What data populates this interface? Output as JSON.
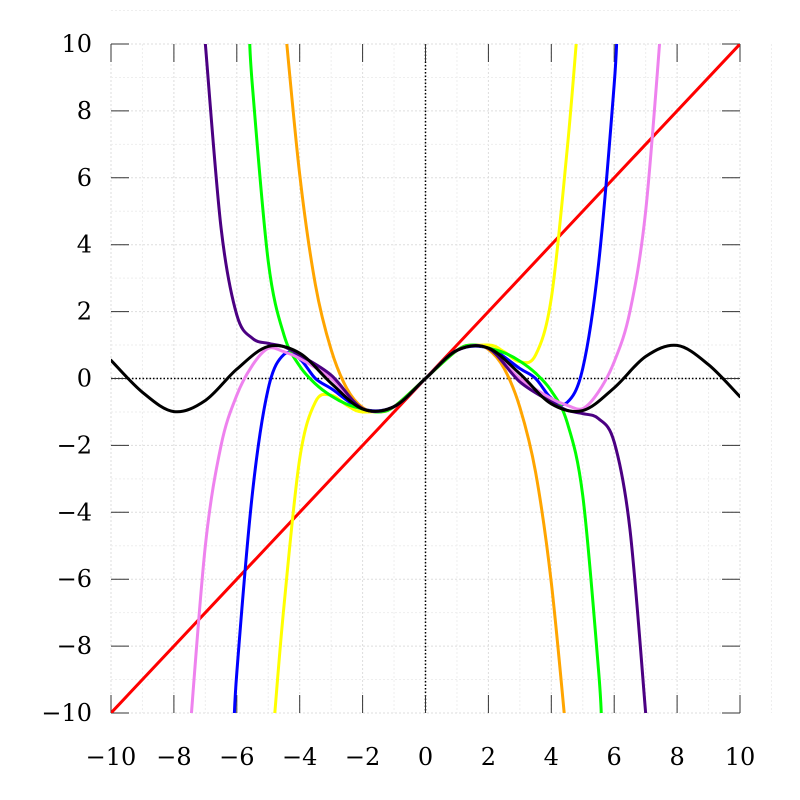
{
  "chart_data": {
    "type": "line",
    "title": "",
    "xlabel": "",
    "ylabel": "",
    "xlim": [
      -10,
      10
    ],
    "ylim": [
      -10,
      10
    ],
    "grid": true,
    "legend": "none",
    "xticks": [
      -10,
      -8,
      -6,
      -4,
      -2,
      0,
      2,
      4,
      6,
      8,
      10
    ],
    "yticks": [
      -10,
      -8,
      -6,
      -4,
      -2,
      0,
      2,
      4,
      6,
      8,
      10
    ],
    "xtick_labels": [
      "−10",
      "−8",
      "−6",
      "−4",
      "−2",
      "0",
      "2",
      "4",
      "6",
      "8",
      "10"
    ],
    "ytick_labels": [
      "−10",
      "−8",
      "−6",
      "−4",
      "−2",
      "0",
      "2",
      "4",
      "6",
      "8",
      "10"
    ],
    "series": [
      {
        "color": "#ff0000",
        "x": [
          -10,
          -5,
          0,
          5,
          10
        ],
        "y": [
          -10,
          -5,
          0,
          5,
          10
        ]
      },
      {
        "color": "#ffff00",
        "x": [
          -4.8,
          -4.5,
          -4.0,
          -3.5,
          -3.0,
          -2.5,
          -2.0,
          -1.0,
          0,
          1.0,
          2.0,
          2.5,
          3.0,
          3.5,
          4.0,
          4.5,
          4.8
        ],
        "y": [
          -10.1,
          -6.8,
          -2.4,
          -0.7,
          -0.5,
          -0.8,
          -1.0,
          -0.84,
          0,
          0.84,
          1.0,
          0.8,
          0.5,
          0.7,
          2.4,
          6.8,
          10.1
        ]
      },
      {
        "color": "#ffa500",
        "x": [
          -4.5,
          -4.0,
          -3.5,
          -3.0,
          -2.5,
          -2.0,
          -1.5,
          -1.0,
          0,
          1.0,
          1.5,
          2.0,
          2.5,
          3.0,
          3.5,
          4.0,
          4.5
        ],
        "y": [
          10.9,
          6.1,
          2.8,
          0.86,
          -0.3,
          -0.87,
          -1.0,
          -0.84,
          0,
          0.84,
          1.0,
          0.87,
          0.3,
          -0.86,
          -2.8,
          -6.1,
          -10.9
        ]
      },
      {
        "color": "#0000ff",
        "x": [
          -6.1,
          -6.0,
          -5.5,
          -5.0,
          -4.5,
          -4.0,
          -3.5,
          -3.0,
          -2.0,
          -1.0,
          0,
          1.0,
          2.0,
          3.0,
          3.5,
          4.0,
          4.5,
          5.0,
          5.5,
          6.0,
          6.1
        ],
        "y": [
          -10.7,
          -8.8,
          -3.4,
          -0.3,
          0.72,
          0.59,
          0.0,
          -0.3,
          -0.91,
          -0.84,
          0,
          0.84,
          0.91,
          0.3,
          0.0,
          -0.59,
          -0.72,
          0.3,
          3.4,
          8.8,
          10.7
        ]
      },
      {
        "color": "#00ff00",
        "x": [
          -5.6,
          -5.5,
          -5.0,
          -4.5,
          -4.0,
          -3.5,
          -3.0,
          -2.5,
          -2.0,
          -1.5,
          -1.0,
          0,
          1.0,
          1.5,
          2.0,
          2.5,
          3.0,
          3.5,
          4.0,
          4.5,
          5.0,
          5.5,
          5.6
        ],
        "y": [
          10.3,
          8.7,
          3.5,
          1.3,
          0.37,
          -0.16,
          -0.52,
          -0.77,
          -0.91,
          -1.0,
          -0.84,
          0,
          0.84,
          1.0,
          0.91,
          0.77,
          0.52,
          0.16,
          -0.37,
          -1.3,
          -3.5,
          -8.7,
          -10.3
        ]
      },
      {
        "color": "#ee82ee",
        "x": [
          -7.5,
          -7.0,
          -6.5,
          -6.0,
          -5.5,
          -5.0,
          -4.5,
          -4.0,
          -3.0,
          -2.0,
          -1.0,
          0,
          1.0,
          2.0,
          3.0,
          4.0,
          4.5,
          5.0,
          5.5,
          6.0,
          6.5,
          7.0,
          7.5
        ],
        "y": [
          -10.7,
          -5.0,
          -2.0,
          -0.5,
          0.4,
          0.9,
          0.8,
          0.6,
          0.0,
          -0.9,
          -0.84,
          0,
          0.84,
          0.9,
          0.0,
          -0.6,
          -0.8,
          -0.9,
          -0.4,
          0.5,
          2.0,
          5.0,
          10.7
        ]
      },
      {
        "color": "#4b0082",
        "x": [
          -7.0,
          -6.5,
          -6.0,
          -5.5,
          -5.0,
          -4.5,
          -4.0,
          -3.0,
          -2.0,
          -1.0,
          0,
          1.0,
          2.0,
          3.0,
          4.0,
          4.5,
          5.0,
          5.5,
          6.0,
          6.5,
          7.0
        ],
        "y": [
          10.0,
          4.5,
          1.9,
          1.2,
          1.05,
          0.95,
          0.7,
          0.1,
          -0.9,
          -0.84,
          0,
          0.84,
          0.9,
          -0.1,
          -0.7,
          -0.95,
          -1.05,
          -1.2,
          -1.9,
          -4.5,
          -10.0
        ]
      },
      {
        "color": "#000000",
        "x": [
          -10,
          -9,
          -8,
          -7,
          -6,
          -5,
          -4,
          -3,
          -2,
          -1,
          0,
          1,
          2,
          3,
          4,
          5,
          6,
          7,
          8,
          9,
          10
        ],
        "y": [
          0.544,
          -0.412,
          -0.989,
          -0.657,
          0.279,
          0.959,
          0.757,
          -0.141,
          -0.909,
          -0.841,
          0,
          0.841,
          0.909,
          0.141,
          -0.757,
          -0.959,
          -0.279,
          0.657,
          0.989,
          0.412,
          -0.544
        ]
      }
    ]
  }
}
